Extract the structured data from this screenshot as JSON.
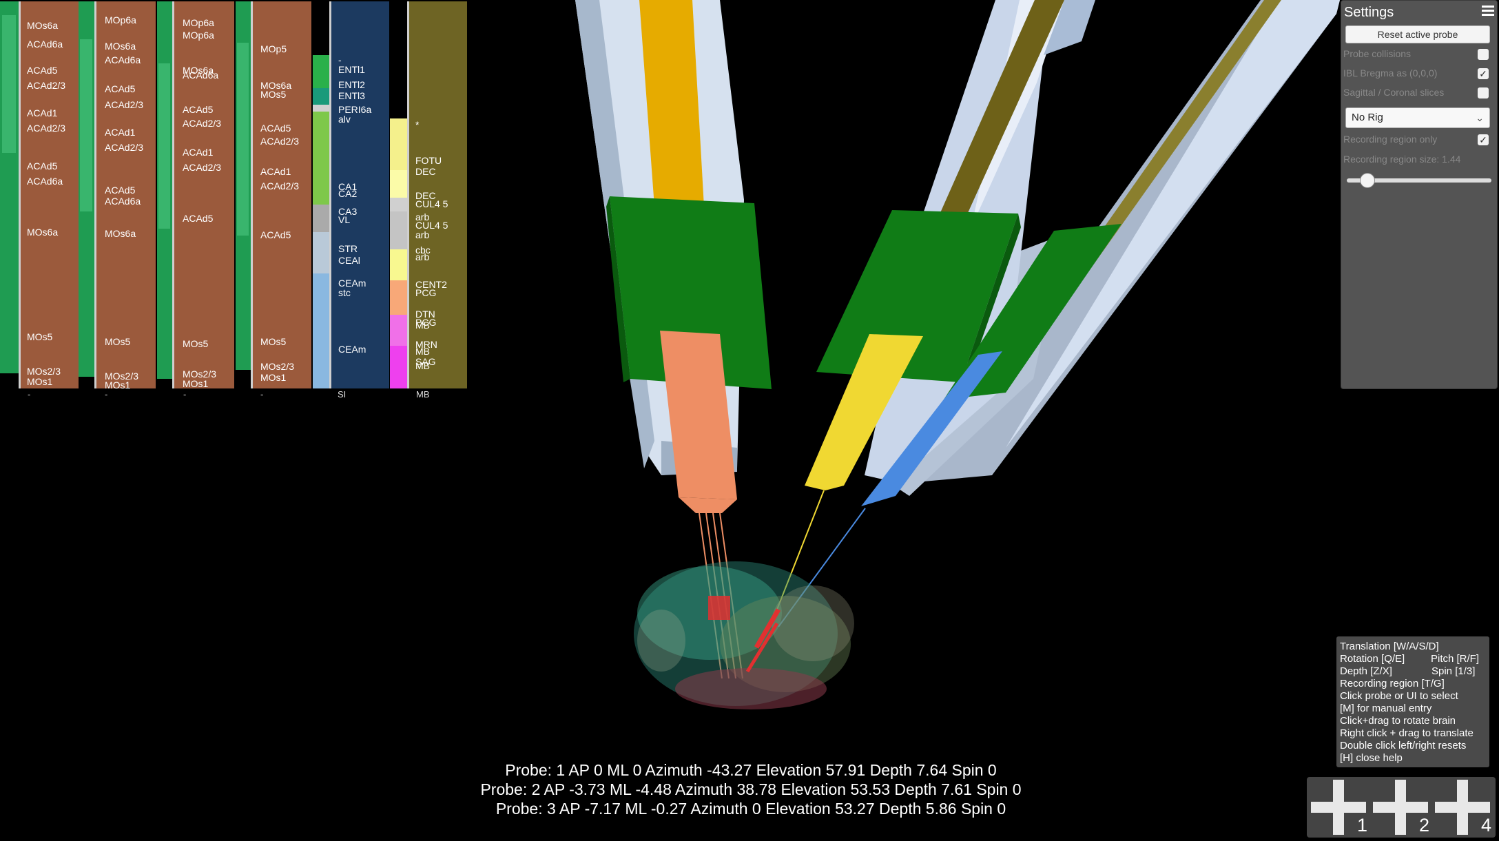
{
  "colors": {
    "background": "#000000",
    "cortex": "#9b5a3c",
    "hippocampus": "#1c3a60",
    "cerebellum": "#6e6424",
    "green_stripe": "#2aa85a",
    "probe_1_shank": "#ee8e64",
    "probe_2_shank": "#f0d832",
    "probe_3_shank": "#4a8ae0",
    "holder_green": "#107c16",
    "manipulator": "#c4d2e6"
  },
  "region_columns": [
    {
      "labels": [
        "MOs6a",
        "ACAd6a",
        "ACAd5",
        "ACAd2/3",
        "ACAd1",
        "ACAd2/3",
        "ACAd5",
        "ACAd6a",
        "MOs6a",
        "MOs5",
        "MOs2/3",
        "MOs1"
      ],
      "below": "-"
    },
    {
      "labels": [
        "MOp6a",
        "MOs6a",
        "ACAd6a",
        "ACAd5",
        "ACAd2/3",
        "ACAd1",
        "ACAd2/3",
        "ACAd5",
        "ACAd6a",
        "MOs6a",
        "MOs5",
        "MOs2/3",
        "MOs1"
      ],
      "below": "-"
    },
    {
      "labels": [
        "MOp6a",
        "MOp6a",
        "MOs6a",
        "ACAd6a",
        "ACAd5",
        "ACAd2/3",
        "ACAd1",
        "ACAd2/3",
        "ACAd5",
        "MOs5",
        "MOs2/3",
        "MOs1"
      ],
      "below": "-"
    },
    {
      "labels": [
        "MOp5",
        "MOs6a",
        "MOs5",
        "ACAd5",
        "ACAd2/3",
        "ACAd1",
        "ACAd2/3",
        "ACAd5",
        "MOs5",
        "MOs2/3",
        "MOs1"
      ],
      "below": "-"
    },
    {
      "labels": [
        "-",
        "ENTl1",
        "ENTl2",
        "ENTl3",
        "PERI6a",
        "alv",
        "CA1",
        "CA2",
        "CA3",
        "VL",
        "STR",
        "CEAl",
        "CEAm",
        "stc",
        "CEAm"
      ],
      "below": "SI"
    },
    {
      "labels": [
        "*",
        "FOTU",
        "DEC",
        "DEC",
        "CUL4 5",
        "arb",
        "CUL4 5",
        "arb",
        "cbc",
        "arb",
        "CENT2",
        "PCG",
        "DTN",
        "PCG",
        "MB",
        "MRN",
        "MB",
        "SAG",
        "MB"
      ],
      "below": "MB"
    }
  ],
  "settings": {
    "title": "Settings",
    "reset_button": "Reset active probe",
    "probe_collisions": {
      "label": "Probe collisions",
      "checked": false
    },
    "ibl_bregma": {
      "label": "IBL Bregma as (0,0,0)",
      "checked": true
    },
    "sagittal_coronal": {
      "label": "Sagittal / Coronal slices",
      "checked": false
    },
    "rig": "No Rig",
    "recording_region_only": {
      "label": "Recording region only",
      "checked": true
    },
    "recording_region_size_label": "Recording region size: 1.44",
    "recording_region_size_fraction": 0.1
  },
  "help": {
    "translation": "Translation [W/A/S/D]",
    "rotation": "Rotation [Q/E]",
    "pitch": "Pitch [R/F]",
    "depth": "Depth [Z/X]",
    "spin": "Spin [1/3]",
    "recording_region": "Recording region [T/G]",
    "click_select": "Click probe or UI to select",
    "manual_entry": "[M] for manual entry",
    "rotate_brain": "Click+drag to rotate brain",
    "translate": "Right click + drag to translate",
    "reset": "Double click left/right resets",
    "close_help": "[H] close help"
  },
  "probe_info": [
    "Probe: 1 AP 0 ML 0 Azimuth -43.27 Elevation 57.91 Depth 7.64 Spin 0",
    "Probe: 2 AP -3.73 ML -4.48 Azimuth 38.78 Elevation 53.53 Depth 7.61 Spin 0",
    "Probe: 3 AP -7.17 ML -0.27 Azimuth 0 Elevation 53.27 Depth 5.86 Spin 0"
  ],
  "add_probe_buttons": [
    "1",
    "2",
    "4"
  ]
}
